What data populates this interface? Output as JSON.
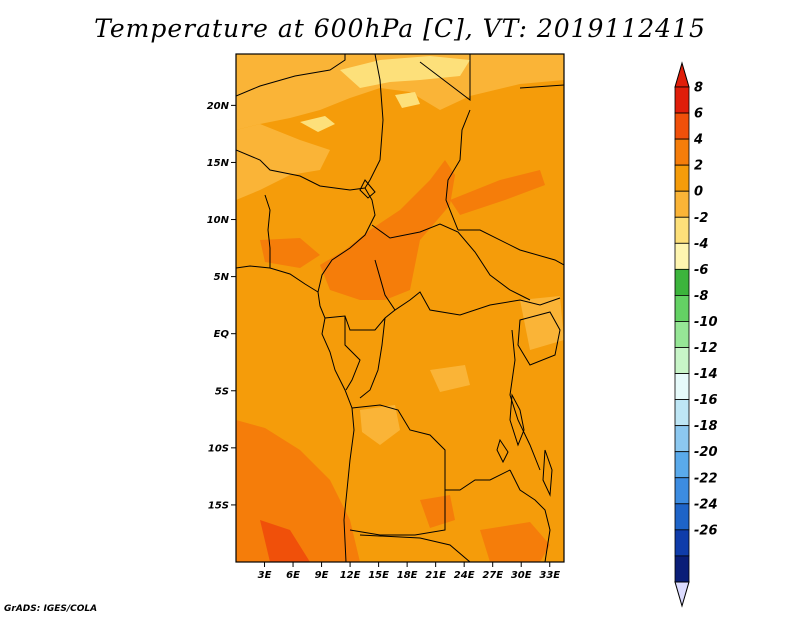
{
  "title": "Temperature at 600hPa [C], VT: 2019112415",
  "credit": "GrADS: IGES/COLA",
  "map": {
    "lon_range": [
      0,
      34.5
    ],
    "lat_range": [
      -20,
      24.5
    ],
    "lat_ticks": [
      {
        "value": 20,
        "label": "20N"
      },
      {
        "value": 15,
        "label": "15N"
      },
      {
        "value": 10,
        "label": "10N"
      },
      {
        "value": 5,
        "label": "5N"
      },
      {
        "value": 0,
        "label": "EQ"
      },
      {
        "value": -5,
        "label": "5S"
      },
      {
        "value": -10,
        "label": "10S"
      },
      {
        "value": -15,
        "label": "15S"
      }
    ],
    "lon_ticks": [
      {
        "value": 3,
        "label": "3E"
      },
      {
        "value": 6,
        "label": "6E"
      },
      {
        "value": 9,
        "label": "9E"
      },
      {
        "value": 12,
        "label": "12E"
      },
      {
        "value": 15,
        "label": "15E"
      },
      {
        "value": 18,
        "label": "18E"
      },
      {
        "value": 21,
        "label": "21E"
      },
      {
        "value": 24,
        "label": "24E"
      },
      {
        "value": 27,
        "label": "27E"
      },
      {
        "value": 30,
        "label": "30E"
      },
      {
        "value": 33,
        "label": "33E"
      }
    ]
  },
  "colorbar": {
    "levels": [
      "8",
      "6",
      "4",
      "2",
      "0",
      "-2",
      "-4",
      "-6",
      "-8",
      "-10",
      "-12",
      "-14",
      "-16",
      "-18",
      "-20",
      "-22",
      "-24",
      "-26"
    ],
    "colors": [
      "#e01e0a",
      "#f0500a",
      "#f57d0a",
      "#f59c0a",
      "#fab437",
      "#fde07a",
      "#fef5b0",
      "#3cb43c",
      "#64d264",
      "#96e696",
      "#c8f5c8",
      "#e6fafa",
      "#bee6f5",
      "#8cc8f0",
      "#5aaaeb",
      "#3c8ce1",
      "#1e64c8",
      "#0f3caa",
      "#0a1e78"
    ],
    "top_arrow": "#e01e0a",
    "bottom_arrow": "#dcdcff"
  }
}
